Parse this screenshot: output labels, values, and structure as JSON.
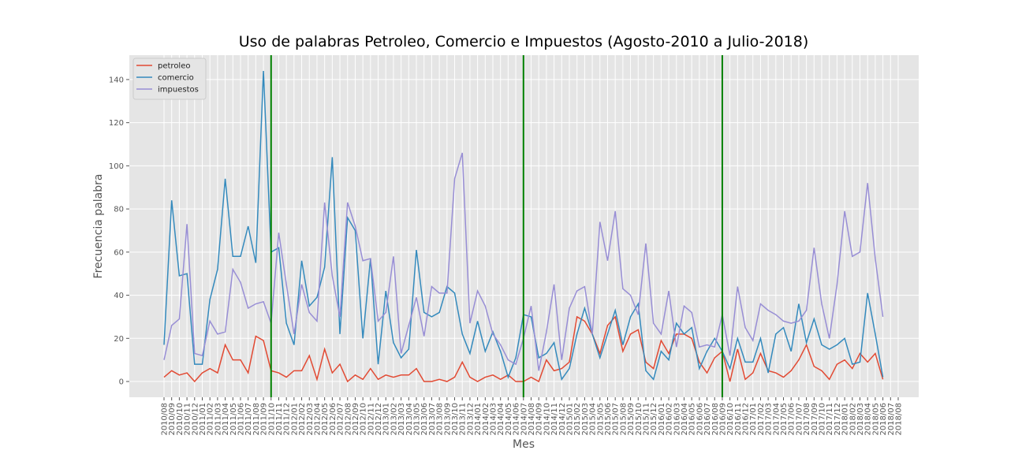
{
  "chart_data": {
    "type": "line",
    "title": "Uso de palabras Petroleo, Comercio e Impuestos (Agosto-2010 a Julio-2018)",
    "xlabel": "Mes",
    "ylabel": "Frecuencia palabra",
    "categories": [
      "2010/08",
      "2010/09",
      "2010/10",
      "2010/11",
      "2010/12",
      "2011/01",
      "2011/02",
      "2011/03",
      "2011/04",
      "2011/05",
      "2011/06",
      "2011/07",
      "2011/08",
      "2011/09",
      "2011/10",
      "2011/11",
      "2011/12",
      "2012/01",
      "2012/02",
      "2012/03",
      "2012/04",
      "2012/05",
      "2012/06",
      "2012/07",
      "2012/08",
      "2012/09",
      "2012/10",
      "2012/11",
      "2012/12",
      "2013/01",
      "2013/02",
      "2013/03",
      "2013/04",
      "2013/05",
      "2013/06",
      "2013/07",
      "2013/08",
      "2013/09",
      "2013/10",
      "2013/11",
      "2013/12",
      "2014/01",
      "2014/02",
      "2014/03",
      "2014/04",
      "2014/05",
      "2014/06",
      "2014/07",
      "2014/08",
      "2014/09",
      "2014/10",
      "2014/11",
      "2014/12",
      "2015/01",
      "2015/02",
      "2015/03",
      "2015/04",
      "2015/05",
      "2015/06",
      "2015/07",
      "2015/08",
      "2015/09",
      "2015/10",
      "2015/11",
      "2015/12",
      "2016/01",
      "2016/02",
      "2016/03",
      "2016/04",
      "2016/05",
      "2016/06",
      "2016/07",
      "2016/08",
      "2016/09",
      "2016/10",
      "2016/11",
      "2016/12",
      "2017/01",
      "2017/02",
      "2017/03",
      "2017/04",
      "2017/05",
      "2017/06",
      "2017/07",
      "2017/08",
      "2017/09",
      "2017/10",
      "2017/11",
      "2017/12",
      "2018/01",
      "2018/02",
      "2018/03",
      "2018/04",
      "2018/05",
      "2018/06",
      "2018/07",
      "2018/08"
    ],
    "series": [
      {
        "name": "petroleo",
        "color": "#e24a33",
        "values": [
          2,
          5,
          3,
          4,
          0,
          4,
          6,
          4,
          17,
          10,
          10,
          4,
          21,
          19,
          5,
          4,
          2,
          5,
          5,
          12,
          1,
          15,
          4,
          8,
          0,
          3,
          1,
          6,
          1,
          3,
          2,
          3,
          3,
          6,
          0,
          0,
          1,
          0,
          2,
          9,
          2,
          0,
          2,
          3,
          1,
          3,
          0,
          0,
          2,
          0,
          10,
          5,
          6,
          9,
          30,
          28,
          22,
          13,
          26,
          30,
          14,
          22,
          24,
          9,
          6,
          19,
          13,
          22,
          22,
          20,
          9,
          4,
          11,
          14,
          0,
          15,
          1,
          4,
          13,
          5,
          4,
          2,
          5,
          10,
          17,
          7,
          5,
          1,
          8,
          10,
          6,
          13,
          9,
          13,
          1,
          null,
          null
        ]
      },
      {
        "name": "comercio",
        "color": "#348abd",
        "values": [
          17,
          84,
          49,
          50,
          8,
          8,
          38,
          52,
          94,
          58,
          58,
          72,
          55,
          144,
          60,
          62,
          27,
          17,
          56,
          35,
          39,
          53,
          104,
          22,
          76,
          70,
          20,
          57,
          8,
          42,
          18,
          11,
          15,
          61,
          32,
          30,
          32,
          44,
          41,
          22,
          13,
          28,
          14,
          23,
          14,
          2,
          11,
          31,
          30,
          11,
          13,
          18,
          1,
          6,
          22,
          34,
          22,
          11,
          22,
          33,
          17,
          30,
          36,
          5,
          1,
          14,
          10,
          27,
          22,
          25,
          6,
          14,
          20,
          14,
          6,
          20,
          9,
          9,
          20,
          4,
          22,
          25,
          14,
          36,
          18,
          29,
          17,
          15,
          17,
          20,
          8,
          9,
          41,
          22,
          2,
          null,
          null
        ]
      },
      {
        "name": "impuestos",
        "color": "#988ed5",
        "values": [
          10,
          26,
          29,
          73,
          13,
          12,
          28,
          22,
          23,
          52,
          46,
          34,
          36,
          37,
          27,
          69,
          45,
          22,
          45,
          32,
          28,
          83,
          49,
          30,
          83,
          72,
          56,
          57,
          28,
          32,
          58,
          13,
          26,
          39,
          21,
          44,
          41,
          41,
          94,
          106,
          27,
          42,
          35,
          22,
          17,
          10,
          8,
          20,
          35,
          5,
          23,
          45,
          10,
          34,
          42,
          44,
          22,
          74,
          56,
          79,
          43,
          40,
          31,
          64,
          27,
          22,
          42,
          16,
          35,
          32,
          16,
          17,
          16,
          31,
          12,
          44,
          25,
          19,
          36,
          33,
          31,
          28,
          27,
          28,
          33,
          62,
          36,
          20,
          45,
          79,
          58,
          60,
          92,
          57,
          30,
          null,
          null
        ]
      }
    ],
    "vlines": [
      "2011/10",
      "2014/07",
      "2016/09"
    ],
    "vline_color": "#008000",
    "ylim": [
      -7.3,
      151.3
    ],
    "yticks": [
      0,
      20,
      40,
      60,
      80,
      100,
      120,
      140
    ],
    "grid": true,
    "legend": "upper left"
  }
}
